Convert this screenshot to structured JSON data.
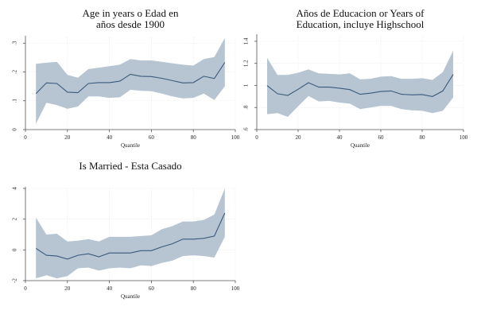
{
  "chart_data": [
    {
      "type": "area",
      "title_lines": [
        "Age in years o Edad en",
        "años desde 1900"
      ],
      "xlabel": "Quantile",
      "ylabel": "",
      "xlim": [
        0,
        100
      ],
      "ylim": [
        0,
        0.32
      ],
      "x_ticks": [
        0,
        20,
        40,
        60,
        80,
        100
      ],
      "x_tick_labels": [
        "0",
        "20",
        "40",
        "60",
        "80",
        "100"
      ],
      "y_ticks": [
        0,
        0.1,
        0.2,
        0.3
      ],
      "y_tick_labels": [
        "0",
        ".1",
        ".2",
        ".3"
      ],
      "grid": true,
      "x": [
        5,
        10,
        15,
        20,
        25,
        30,
        35,
        40,
        45,
        50,
        55,
        60,
        65,
        70,
        75,
        80,
        85,
        90,
        95
      ],
      "series": [
        {
          "role": "estimate",
          "values": [
            0.125,
            0.162,
            0.16,
            0.13,
            0.128,
            0.16,
            0.163,
            0.163,
            0.168,
            0.192,
            0.185,
            0.184,
            0.178,
            0.17,
            0.162,
            0.163,
            0.185,
            0.177,
            0.233
          ]
        },
        {
          "role": "upper",
          "values": [
            0.228,
            0.232,
            0.235,
            0.19,
            0.18,
            0.21,
            0.215,
            0.22,
            0.225,
            0.245,
            0.24,
            0.24,
            0.235,
            0.23,
            0.225,
            0.222,
            0.245,
            0.252,
            0.318
          ]
        },
        {
          "role": "lower",
          "values": [
            0.02,
            0.093,
            0.085,
            0.072,
            0.08,
            0.115,
            0.115,
            0.11,
            0.112,
            0.138,
            0.135,
            0.133,
            0.125,
            0.115,
            0.108,
            0.11,
            0.125,
            0.103,
            0.15
          ]
        }
      ]
    },
    {
      "type": "area",
      "title_lines": [
        "Años de Educacion or Years of",
        "Education, incluye Highschool"
      ],
      "xlabel": "Quantile",
      "ylabel": "",
      "xlim": [
        0,
        100
      ],
      "ylim": [
        0.6,
        1.45
      ],
      "x_ticks": [
        0,
        20,
        40,
        60,
        80,
        100
      ],
      "x_tick_labels": [
        "0",
        "20",
        "40",
        "60",
        "80",
        "100"
      ],
      "y_ticks": [
        0.6,
        0.8,
        1.0,
        1.2,
        1.4
      ],
      "y_tick_labels": [
        ".6",
        ".8",
        "1",
        "1.2",
        "1.4"
      ],
      "grid": true,
      "x": [
        5,
        10,
        15,
        20,
        25,
        30,
        35,
        40,
        45,
        50,
        55,
        60,
        65,
        70,
        75,
        80,
        85,
        90,
        95
      ],
      "series": [
        {
          "role": "estimate",
          "values": [
            0.998,
            0.925,
            0.91,
            0.965,
            1.025,
            0.985,
            0.985,
            0.975,
            0.962,
            0.92,
            0.93,
            0.945,
            0.95,
            0.92,
            0.915,
            0.918,
            0.9,
            0.95,
            1.1
          ]
        },
        {
          "role": "upper",
          "values": [
            1.25,
            1.095,
            1.095,
            1.115,
            1.145,
            1.11,
            1.105,
            1.1,
            1.11,
            1.055,
            1.06,
            1.08,
            1.085,
            1.06,
            1.06,
            1.065,
            1.05,
            1.12,
            1.315
          ]
        },
        {
          "role": "lower",
          "values": [
            0.74,
            0.75,
            0.715,
            0.81,
            0.905,
            0.855,
            0.86,
            0.845,
            0.835,
            0.785,
            0.8,
            0.815,
            0.815,
            0.785,
            0.775,
            0.77,
            0.75,
            0.77,
            0.89
          ]
        }
      ]
    },
    {
      "type": "area",
      "title_lines": [
        "Is Married - Esta Casado"
      ],
      "xlabel": "Quantile",
      "ylabel": "",
      "xlim": [
        0,
        100
      ],
      "ylim": [
        -2,
        4
      ],
      "x_ticks": [
        0,
        20,
        40,
        60,
        80,
        100
      ],
      "x_tick_labels": [
        "0",
        "20",
        "40",
        "60",
        "80",
        "100"
      ],
      "y_ticks": [
        -2,
        0,
        2,
        4
      ],
      "y_tick_labels": [
        "-2",
        "0",
        "2",
        "4"
      ],
      "grid": true,
      "x": [
        5,
        10,
        15,
        20,
        25,
        30,
        35,
        40,
        45,
        50,
        55,
        60,
        65,
        70,
        75,
        80,
        85,
        90,
        95
      ],
      "series": [
        {
          "role": "estimate",
          "values": [
            0.1,
            -0.35,
            -0.4,
            -0.6,
            -0.35,
            -0.25,
            -0.45,
            -0.2,
            -0.2,
            -0.2,
            -0.05,
            -0.05,
            0.2,
            0.4,
            0.7,
            0.7,
            0.75,
            0.9,
            2.4
          ]
        },
        {
          "role": "upper",
          "values": [
            2.1,
            1.0,
            1.05,
            0.55,
            0.6,
            0.7,
            0.55,
            0.85,
            0.85,
            0.85,
            0.9,
            0.95,
            1.35,
            1.55,
            1.85,
            1.85,
            1.95,
            2.3,
            4.0
          ]
        },
        {
          "role": "lower",
          "values": [
            -1.85,
            -1.65,
            -1.85,
            -1.7,
            -1.2,
            -1.15,
            -1.35,
            -1.2,
            -1.15,
            -1.2,
            -1.0,
            -1.05,
            -0.85,
            -0.7,
            -0.4,
            -0.35,
            -0.4,
            -0.5,
            0.85
          ]
        }
      ]
    }
  ]
}
